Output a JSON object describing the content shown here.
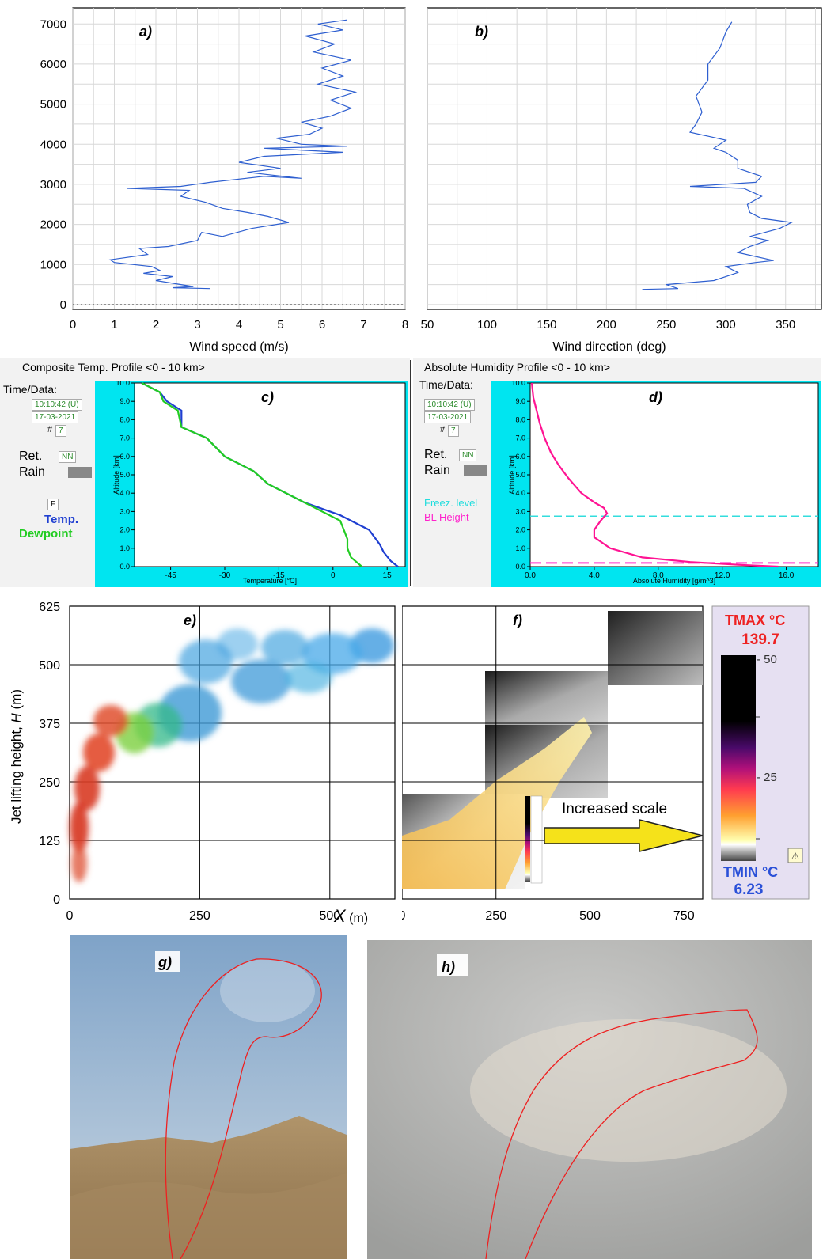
{
  "chart_data": [
    {
      "panel": "a)",
      "type": "line",
      "xlabel": "Wind speed (m/s)",
      "xlim": [
        0,
        8
      ],
      "ylim": [
        0,
        7000
      ],
      "xticks": [
        "0",
        "1",
        "2",
        "3",
        "4",
        "5",
        "6",
        "7",
        "8"
      ],
      "yticks": [
        "0",
        "1000",
        "2000",
        "3000",
        "4000",
        "5000",
        "6000",
        "7000"
      ],
      "grid": true,
      "color": "#2e5fd0",
      "points": [
        [
          3.3,
          400
        ],
        [
          2.4,
          420
        ],
        [
          2.9,
          450
        ],
        [
          2.0,
          600
        ],
        [
          2.4,
          700
        ],
        [
          1.7,
          780
        ],
        [
          2.1,
          850
        ],
        [
          1.9,
          950
        ],
        [
          1.0,
          1050
        ],
        [
          0.9,
          1120
        ],
        [
          1.8,
          1250
        ],
        [
          1.6,
          1400
        ],
        [
          2.3,
          1450
        ],
        [
          3.0,
          1600
        ],
        [
          3.1,
          1800
        ],
        [
          3.6,
          1700
        ],
        [
          4.3,
          1900
        ],
        [
          5.2,
          2050
        ],
        [
          4.7,
          2200
        ],
        [
          4.2,
          2300
        ],
        [
          3.6,
          2400
        ],
        [
          3.2,
          2550
        ],
        [
          2.6,
          2700
        ],
        [
          2.8,
          2850
        ],
        [
          1.3,
          2900
        ],
        [
          2.6,
          2950
        ],
        [
          3.3,
          3050
        ],
        [
          4.6,
          3200
        ],
        [
          5.5,
          3150
        ],
        [
          4.2,
          3300
        ],
        [
          5.0,
          3400
        ],
        [
          4.0,
          3550
        ],
        [
          4.6,
          3700
        ],
        [
          6.5,
          3800
        ],
        [
          4.6,
          3900
        ],
        [
          6.6,
          3950
        ],
        [
          5.5,
          4000
        ],
        [
          4.9,
          4150
        ],
        [
          5.7,
          4250
        ],
        [
          6.0,
          4400
        ],
        [
          5.5,
          4550
        ],
        [
          6.2,
          4700
        ],
        [
          6.7,
          4900
        ],
        [
          6.2,
          5100
        ],
        [
          6.8,
          5300
        ],
        [
          5.9,
          5500
        ],
        [
          6.5,
          5700
        ],
        [
          6.0,
          5900
        ],
        [
          6.7,
          6100
        ],
        [
          5.8,
          6300
        ],
        [
          6.3,
          6500
        ],
        [
          5.6,
          6700
        ],
        [
          6.5,
          6850
        ],
        [
          5.9,
          7000
        ],
        [
          6.6,
          7100
        ]
      ]
    },
    {
      "panel": "b)",
      "type": "line",
      "xlabel": "Wind direction (deg)",
      "xlim": [
        50,
        380
      ],
      "ylim": [
        0,
        7000
      ],
      "xticks": [
        "50",
        "100",
        "150",
        "200",
        "250",
        "300",
        "350"
      ],
      "grid": true,
      "color": "#2e5fd0",
      "points": [
        [
          230,
          380
        ],
        [
          260,
          400
        ],
        [
          250,
          500
        ],
        [
          290,
          600
        ],
        [
          310,
          800
        ],
        [
          300,
          950
        ],
        [
          325,
          1050
        ],
        [
          340,
          1100
        ],
        [
          310,
          1300
        ],
        [
          320,
          1450
        ],
        [
          335,
          1600
        ],
        [
          320,
          1700
        ],
        [
          345,
          1900
        ],
        [
          355,
          2050
        ],
        [
          330,
          2150
        ],
        [
          320,
          2300
        ],
        [
          318,
          2500
        ],
        [
          330,
          2700
        ],
        [
          315,
          2900
        ],
        [
          270,
          2950
        ],
        [
          325,
          3050
        ],
        [
          330,
          3200
        ],
        [
          310,
          3400
        ],
        [
          310,
          3600
        ],
        [
          300,
          3800
        ],
        [
          290,
          3900
        ],
        [
          300,
          4100
        ],
        [
          285,
          4200
        ],
        [
          270,
          4300
        ],
        [
          275,
          4500
        ],
        [
          280,
          4800
        ],
        [
          275,
          5200
        ],
        [
          285,
          5600
        ],
        [
          285,
          6000
        ],
        [
          295,
          6400
        ],
        [
          300,
          6800
        ],
        [
          305,
          7050
        ]
      ]
    },
    {
      "panel": "c)",
      "type": "line",
      "title": "Composite Temp. Profile <0 - 10 km>",
      "xlabel": "Temperature [°C]",
      "ylabel": "Altitude [km]",
      "xlim": [
        -55,
        20
      ],
      "ylim": [
        0,
        10
      ],
      "xticks": [
        "-45",
        "-30",
        "-15",
        "0",
        "15"
      ],
      "yticks": [
        "0.0",
        "1.0",
        "2.0",
        "3.0",
        "4.0",
        "5.0",
        "6.0",
        "7.0",
        "8.0",
        "9.0",
        "10.0"
      ],
      "series": [
        {
          "name": "Temp.",
          "color": "#1f3fd1",
          "points": [
            [
              18,
              0
            ],
            [
              16,
              0.3
            ],
            [
              14,
              0.8
            ],
            [
              13,
              1.2
            ],
            [
              10,
              2.0
            ],
            [
              8,
              2.2
            ],
            [
              5,
              2.5
            ],
            [
              2,
              2.8
            ],
            [
              -8,
              3.5
            ],
            [
              -18,
              4.5
            ],
            [
              -22,
              5.2
            ],
            [
              -30,
              6.0
            ],
            [
              -35,
              7.0
            ],
            [
              -42,
              7.6
            ],
            [
              -42,
              8.5
            ],
            [
              -46,
              9.0
            ],
            [
              -48,
              9.5
            ],
            [
              -53,
              10
            ]
          ]
        },
        {
          "name": "Dewpoint",
          "color": "#22cc22",
          "points": [
            [
              8,
              0
            ],
            [
              5,
              0.5
            ],
            [
              4,
              1.0
            ],
            [
              4,
              1.5
            ],
            [
              3,
              2.0
            ],
            [
              2,
              2.5
            ],
            [
              -8,
              3.5
            ],
            [
              -18,
              4.5
            ],
            [
              -22,
              5.2
            ],
            [
              -30,
              6.0
            ],
            [
              -35,
              7.0
            ],
            [
              -42,
              7.6
            ],
            [
              -43,
              8.5
            ],
            [
              -47,
              9.0
            ],
            [
              -48,
              9.5
            ],
            [
              -53,
              10
            ]
          ]
        }
      ],
      "sidebar": {
        "time_label": "Time/Data:",
        "time": "10:10:42 (U)",
        "date": "17-03-2021",
        "num_label": "#",
        "num": "7",
        "ret_label": "Ret.",
        "ret": "NN",
        "rain_label": "Rain",
        "f_label": "F",
        "temp_label": "Temp.",
        "dew_label": "Dewpoint"
      }
    },
    {
      "panel": "d)",
      "type": "line",
      "title": "Absolute Humidity Profile <0 - 10 km>",
      "xlabel": "Absolute Humidity [g/m^3]",
      "ylabel": "Altitude [km]",
      "xlim": [
        0,
        18
      ],
      "ylim": [
        0,
        10
      ],
      "xticks": [
        "0.0",
        "4.0",
        "8.0",
        "12.0",
        "16.0"
      ],
      "yticks": [
        "0.0",
        "1.0",
        "2.0",
        "3.0",
        "4.0",
        "5.0",
        "6.0",
        "7.0",
        "8.0",
        "9.0",
        "10.0"
      ],
      "freezing_level_km": 2.75,
      "bl_height_km": 0.2,
      "series": [
        {
          "name": "Absolute Humidity",
          "color": "#ff1493",
          "points": [
            [
              15.5,
              0
            ],
            [
              13,
              0.1
            ],
            [
              10,
              0.25
            ],
            [
              7,
              0.5
            ],
            [
              5,
              1.0
            ],
            [
              4,
              1.6
            ],
            [
              4,
              2.0
            ],
            [
              4.4,
              2.5
            ],
            [
              4.8,
              2.9
            ],
            [
              4.6,
              3.2
            ],
            [
              4,
              3.5
            ],
            [
              3.2,
              4.0
            ],
            [
              2.4,
              4.8
            ],
            [
              1.8,
              5.5
            ],
            [
              1.3,
              6.2
            ],
            [
              0.9,
              7.0
            ],
            [
              0.6,
              7.8
            ],
            [
              0.4,
              8.5
            ],
            [
              0.2,
              9.2
            ],
            [
              0.1,
              10
            ]
          ]
        }
      ],
      "sidebar": {
        "time_label": "Time/Data:",
        "time": "10:10:42 (U)",
        "date": "17-03-2021",
        "num_label": "#",
        "num": "7",
        "ret_label": "Ret.",
        "ret": "NN",
        "rain_label": "Rain",
        "freez_label": "Freez. level",
        "bl_label": "BL Height"
      }
    },
    {
      "panel": "e)",
      "type": "scatter",
      "xlabel_var": "X",
      "xlabel_unit": " (m)",
      "ylabel_pre": "Jet lifting height, ",
      "ylabel_var": "H",
      "ylabel_unit": " (m)",
      "xlim": [
        0,
        625
      ],
      "ylim": [
        0,
        625
      ],
      "xticks": [
        "0",
        "250",
        "500"
      ],
      "yticks": [
        "0",
        "125",
        "250",
        "375",
        "500",
        "625"
      ]
    },
    {
      "panel": "f)",
      "type": "heatmap",
      "xlim": [
        0,
        800
      ],
      "xticks": [
        "0",
        "250",
        "500",
        "750"
      ],
      "annotation": "Increased scale",
      "colorbar": {
        "tmax_label": "TMAX °C",
        "tmax": "139.7",
        "tmin_label": "TMIN °C",
        "tmin": "6.23",
        "ticks": [
          "- 50",
          "- 25"
        ]
      }
    }
  ],
  "photos": [
    {
      "panel": "g)"
    },
    {
      "panel": "h)"
    }
  ]
}
